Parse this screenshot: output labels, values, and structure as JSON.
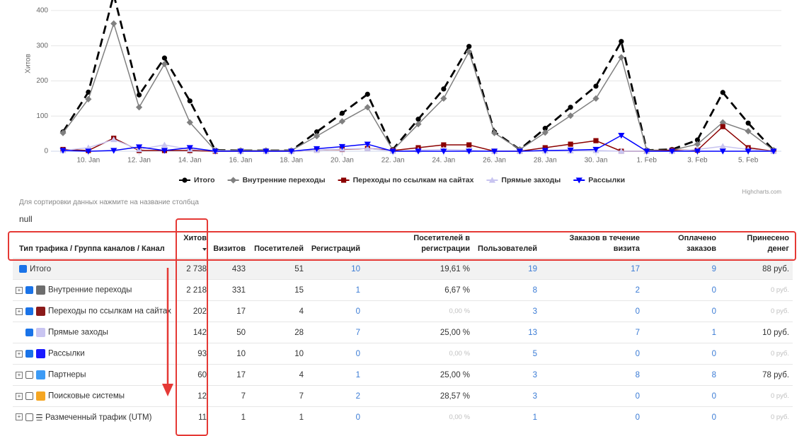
{
  "chart_data": {
    "type": "line",
    "ylabel": "Хитов",
    "credit": "Highcharts.com",
    "categories": [
      null,
      "10. Jan",
      null,
      "12. Jan",
      null,
      "14. Jan",
      null,
      "16. Jan",
      null,
      "18. Jan",
      null,
      "20. Jan",
      null,
      "22. Jan",
      null,
      "24. Jan",
      null,
      "26. Jan",
      null,
      "28. Jan",
      null,
      "30. Jan",
      null,
      "1. Feb",
      null,
      "3. Feb",
      null,
      "5. Feb",
      null
    ],
    "ylim": [
      0,
      430
    ],
    "yticks": [
      0,
      100,
      200,
      300,
      400
    ],
    "grid": true,
    "series": [
      {
        "name": "Итого",
        "color": "#000000",
        "values": [
          55,
          168,
          445,
          160,
          265,
          143,
          3,
          2,
          2,
          2,
          55,
          108,
          162,
          5,
          91,
          177,
          298,
          55,
          5,
          65,
          125,
          185,
          312,
          3,
          5,
          32,
          167,
          80,
          3
        ]
      },
      {
        "name": "Внутренние переходы",
        "color": "#808080",
        "values": [
          52,
          148,
          363,
          125,
          248,
          82,
          2,
          2,
          2,
          2,
          43,
          85,
          125,
          3,
          77,
          150,
          283,
          52,
          5,
          53,
          101,
          150,
          267,
          3,
          3,
          20,
          82,
          57,
          3
        ]
      },
      {
        "name": "Переходы по ссылкам на сайтах",
        "color": "#8b0000",
        "values": [
          5,
          2,
          37,
          2,
          2,
          2,
          0,
          0,
          0,
          0,
          3,
          5,
          8,
          2,
          10,
          18,
          18,
          0,
          0,
          10,
          20,
          30,
          0,
          0,
          3,
          3,
          70,
          10,
          0
        ]
      },
      {
        "name": "Прямые заходы",
        "color": "#c8c4f0",
        "values": [
          2,
          10,
          33,
          5,
          18,
          5,
          2,
          0,
          0,
          0,
          3,
          6,
          8,
          0,
          3,
          5,
          3,
          0,
          0,
          1,
          1,
          2,
          0,
          0,
          0,
          5,
          14,
          5,
          0
        ]
      },
      {
        "name": "Рассылки",
        "color": "#0000ff",
        "values": [
          2,
          0,
          2,
          12,
          2,
          10,
          0,
          0,
          0,
          0,
          7,
          13,
          20,
          0,
          0,
          0,
          0,
          0,
          0,
          2,
          3,
          5,
          45,
          0,
          0,
          0,
          0,
          0,
          0
        ]
      }
    ]
  },
  "note": "Для сортировки данных нажмите на название столбца",
  "status": "null",
  "table": {
    "headers": [
      "Тип трафика / Группа каналов / Канал",
      "Хитов",
      "Визитов",
      "Посетителей",
      "Регистраций",
      "Посетителей в регистрации",
      "Пользователей",
      "Заказов в течение визита",
      "Оплачено заказов",
      "Принесено денег"
    ],
    "rows": [
      {
        "name": "Итого",
        "cells": [
          "2 738",
          "433",
          "51",
          "10",
          "19,61 %",
          "19",
          "17",
          "9",
          "88 руб."
        ]
      },
      {
        "name": "Внутренние переходы",
        "cells": [
          "2 218",
          "331",
          "15",
          "1",
          "6,67 %",
          "8",
          "2",
          "0",
          "0 руб."
        ]
      },
      {
        "name": "Переходы по ссылкам на сайтах",
        "cells": [
          "202",
          "17",
          "4",
          "0",
          "0,00 %",
          "3",
          "0",
          "0",
          "0 руб."
        ]
      },
      {
        "name": "Прямые заходы",
        "cells": [
          "142",
          "50",
          "28",
          "7",
          "25,00 %",
          "13",
          "7",
          "1",
          "10 руб."
        ]
      },
      {
        "name": "Рассылки",
        "cells": [
          "93",
          "10",
          "10",
          "0",
          "0,00 %",
          "5",
          "0",
          "0",
          "0 руб."
        ]
      },
      {
        "name": "Партнеры",
        "cells": [
          "60",
          "17",
          "4",
          "1",
          "25,00 %",
          "3",
          "8",
          "8",
          "78 руб."
        ]
      },
      {
        "name": "Поисковые системы",
        "cells": [
          "12",
          "7",
          "7",
          "2",
          "28,57 %",
          "3",
          "0",
          "0",
          "0 руб."
        ]
      },
      {
        "name": "Размеченный трафик (UTM)",
        "cells": [
          "11",
          "1",
          "1",
          "0",
          "0,00 %",
          "1",
          "0",
          "0",
          "0 руб."
        ]
      }
    ]
  }
}
